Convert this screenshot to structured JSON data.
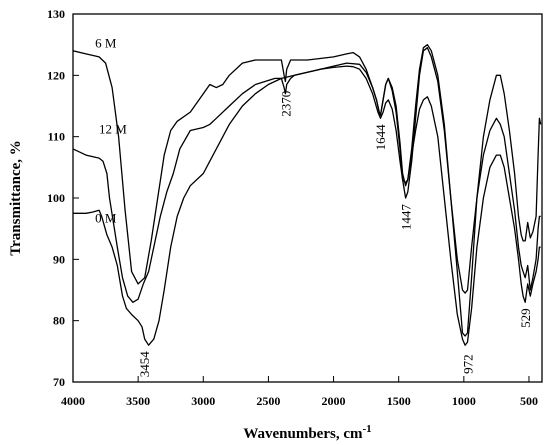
{
  "chart_data": {
    "type": "line",
    "xlabel": "Wavenumbers, cm",
    "xlabel_sup": "-1",
    "ylabel": "Transmittance, %",
    "xlim": [
      4000,
      400
    ],
    "ylim": [
      70,
      130
    ],
    "x_reversed": true,
    "x_ticks": [
      4000,
      3500,
      3000,
      2500,
      2000,
      1500,
      1000,
      500
    ],
    "y_ticks": [
      70,
      80,
      90,
      100,
      110,
      120,
      130
    ],
    "grid": false,
    "series": [
      {
        "name": "6 M",
        "color": "#000000",
        "points": [
          [
            4000,
            124
          ],
          [
            3900,
            123.5
          ],
          [
            3800,
            123
          ],
          [
            3750,
            122
          ],
          [
            3700,
            118
          ],
          [
            3650,
            110
          ],
          [
            3600,
            98
          ],
          [
            3550,
            88
          ],
          [
            3500,
            86
          ],
          [
            3450,
            87
          ],
          [
            3400,
            93
          ],
          [
            3350,
            100
          ],
          [
            3300,
            107
          ],
          [
            3250,
            111
          ],
          [
            3200,
            112.5
          ],
          [
            3100,
            114
          ],
          [
            3000,
            117
          ],
          [
            2950,
            118.5
          ],
          [
            2900,
            118
          ],
          [
            2850,
            118.5
          ],
          [
            2800,
            120
          ],
          [
            2700,
            122
          ],
          [
            2600,
            122.5
          ],
          [
            2450,
            122.5
          ],
          [
            2400,
            122.5
          ],
          [
            2380,
            120
          ],
          [
            2370,
            119
          ],
          [
            2360,
            121
          ],
          [
            2330,
            122.5
          ],
          [
            2300,
            122.5
          ],
          [
            2200,
            122.5
          ],
          [
            2000,
            123
          ],
          [
            1900,
            123.5
          ],
          [
            1850,
            123.7
          ],
          [
            1800,
            123
          ],
          [
            1750,
            121
          ],
          [
            1700,
            118
          ],
          [
            1670,
            116
          ],
          [
            1650,
            114
          ],
          [
            1640,
            113.5
          ],
          [
            1620,
            116
          ],
          [
            1600,
            118.5
          ],
          [
            1580,
            119.5
          ],
          [
            1550,
            118
          ],
          [
            1520,
            115
          ],
          [
            1490,
            109
          ],
          [
            1470,
            104
          ],
          [
            1447,
            102
          ],
          [
            1430,
            103
          ],
          [
            1400,
            108
          ],
          [
            1370,
            115
          ],
          [
            1340,
            121
          ],
          [
            1310,
            124.5
          ],
          [
            1280,
            125
          ],
          [
            1250,
            124
          ],
          [
            1200,
            120
          ],
          [
            1150,
            112
          ],
          [
            1100,
            100
          ],
          [
            1050,
            88
          ],
          [
            1010,
            78
          ],
          [
            990,
            77.5
          ],
          [
            972,
            78
          ],
          [
            940,
            87
          ],
          [
            900,
            100
          ],
          [
            850,
            110
          ],
          [
            800,
            116
          ],
          [
            750,
            120
          ],
          [
            720,
            120
          ],
          [
            690,
            117
          ],
          [
            650,
            111
          ],
          [
            610,
            104
          ],
          [
            580,
            97
          ],
          [
            560,
            94
          ],
          [
            545,
            93
          ],
          [
            529,
            93
          ],
          [
            510,
            96
          ],
          [
            490,
            93.5
          ],
          [
            470,
            94.5
          ],
          [
            445,
            97
          ],
          [
            430,
            107
          ],
          [
            420,
            113
          ],
          [
            410,
            112
          ]
        ]
      },
      {
        "name": "12 M",
        "color": "#000000",
        "points": [
          [
            4000,
            108
          ],
          [
            3900,
            107
          ],
          [
            3800,
            106.5
          ],
          [
            3770,
            106
          ],
          [
            3740,
            104
          ],
          [
            3720,
            100
          ],
          [
            3690,
            96
          ],
          [
            3660,
            92
          ],
          [
            3620,
            87
          ],
          [
            3580,
            84
          ],
          [
            3540,
            83
          ],
          [
            3500,
            83.5
          ],
          [
            3460,
            86
          ],
          [
            3420,
            88
          ],
          [
            3380,
            92
          ],
          [
            3330,
            97
          ],
          [
            3280,
            101
          ],
          [
            3230,
            104
          ],
          [
            3180,
            108
          ],
          [
            3100,
            111
          ],
          [
            3000,
            111.5
          ],
          [
            2950,
            112
          ],
          [
            2900,
            113
          ],
          [
            2800,
            115
          ],
          [
            2700,
            117
          ],
          [
            2600,
            118.5
          ],
          [
            2450,
            119.5
          ],
          [
            2400,
            119.5
          ],
          [
            2380,
            118
          ],
          [
            2370,
            117
          ],
          [
            2360,
            118.5
          ],
          [
            2330,
            119.5
          ],
          [
            2300,
            120
          ],
          [
            2200,
            120.5
          ],
          [
            2100,
            121
          ],
          [
            2000,
            121.5
          ],
          [
            1900,
            122
          ],
          [
            1800,
            121.8
          ],
          [
            1750,
            120.5
          ],
          [
            1700,
            118
          ],
          [
            1670,
            116
          ],
          [
            1650,
            114
          ],
          [
            1640,
            113.5
          ],
          [
            1620,
            116
          ],
          [
            1600,
            118.5
          ],
          [
            1580,
            119.5
          ],
          [
            1550,
            117.5
          ],
          [
            1520,
            114
          ],
          [
            1490,
            108
          ],
          [
            1470,
            103
          ],
          [
            1447,
            100
          ],
          [
            1430,
            101
          ],
          [
            1400,
            106
          ],
          [
            1370,
            113
          ],
          [
            1340,
            120
          ],
          [
            1310,
            124
          ],
          [
            1280,
            124.5
          ],
          [
            1250,
            123
          ],
          [
            1200,
            119
          ],
          [
            1150,
            111
          ],
          [
            1100,
            100
          ],
          [
            1050,
            90
          ],
          [
            1010,
            85
          ],
          [
            990,
            84.5
          ],
          [
            972,
            85
          ],
          [
            940,
            92
          ],
          [
            900,
            100
          ],
          [
            850,
            107
          ],
          [
            800,
            111
          ],
          [
            750,
            113
          ],
          [
            720,
            112
          ],
          [
            690,
            110
          ],
          [
            650,
            104
          ],
          [
            610,
            98
          ],
          [
            580,
            92
          ],
          [
            560,
            89
          ],
          [
            545,
            88
          ],
          [
            529,
            87
          ],
          [
            510,
            89
          ],
          [
            490,
            85
          ],
          [
            470,
            87
          ],
          [
            445,
            90
          ],
          [
            430,
            95
          ],
          [
            420,
            97
          ],
          [
            410,
            97
          ]
        ]
      },
      {
        "name": "0 M",
        "color": "#000000",
        "points": [
          [
            4000,
            97.5
          ],
          [
            3900,
            97.5
          ],
          [
            3850,
            97.7
          ],
          [
            3800,
            98
          ],
          [
            3780,
            97
          ],
          [
            3740,
            94
          ],
          [
            3700,
            92
          ],
          [
            3660,
            89
          ],
          [
            3620,
            84
          ],
          [
            3590,
            82
          ],
          [
            3550,
            81
          ],
          [
            3500,
            80
          ],
          [
            3470,
            79
          ],
          [
            3450,
            77
          ],
          [
            3420,
            76
          ],
          [
            3380,
            77
          ],
          [
            3340,
            80
          ],
          [
            3300,
            85
          ],
          [
            3250,
            92
          ],
          [
            3200,
            97
          ],
          [
            3150,
            100
          ],
          [
            3100,
            102
          ],
          [
            3000,
            104
          ],
          [
            2950,
            106
          ],
          [
            2900,
            108
          ],
          [
            2800,
            112
          ],
          [
            2700,
            115
          ],
          [
            2600,
            117
          ],
          [
            2500,
            118.5
          ],
          [
            2400,
            119.5
          ],
          [
            2300,
            120
          ],
          [
            2200,
            120.5
          ],
          [
            2100,
            121
          ],
          [
            2000,
            121.3
          ],
          [
            1900,
            121.5
          ],
          [
            1850,
            121.4
          ],
          [
            1800,
            121
          ],
          [
            1750,
            119.5
          ],
          [
            1700,
            117
          ],
          [
            1660,
            114
          ],
          [
            1640,
            113
          ],
          [
            1620,
            114
          ],
          [
            1600,
            115.5
          ],
          [
            1580,
            116
          ],
          [
            1550,
            114.5
          ],
          [
            1520,
            111
          ],
          [
            1490,
            106
          ],
          [
            1470,
            103
          ],
          [
            1447,
            102.5
          ],
          [
            1430,
            103
          ],
          [
            1400,
            107
          ],
          [
            1370,
            111
          ],
          [
            1340,
            114.5
          ],
          [
            1310,
            116
          ],
          [
            1280,
            116.5
          ],
          [
            1250,
            115
          ],
          [
            1200,
            110
          ],
          [
            1150,
            100
          ],
          [
            1100,
            90
          ],
          [
            1050,
            81
          ],
          [
            1010,
            77
          ],
          [
            990,
            76
          ],
          [
            972,
            76.5
          ],
          [
            940,
            82
          ],
          [
            900,
            92
          ],
          [
            850,
            100
          ],
          [
            800,
            105
          ],
          [
            750,
            107
          ],
          [
            720,
            107
          ],
          [
            690,
            105
          ],
          [
            650,
            100
          ],
          [
            610,
            95
          ],
          [
            580,
            90
          ],
          [
            560,
            86
          ],
          [
            545,
            84
          ],
          [
            529,
            83
          ],
          [
            510,
            86
          ],
          [
            490,
            84
          ],
          [
            470,
            86
          ],
          [
            445,
            88
          ],
          [
            430,
            90
          ],
          [
            420,
            92
          ],
          [
            410,
            92
          ]
        ]
      }
    ],
    "series_labels": [
      {
        "text": "6 M",
        "x": 3830,
        "y": 124.5
      },
      {
        "text": "12 M",
        "x": 3800,
        "y": 110.5
      },
      {
        "text": "0 M",
        "x": 3830,
        "y": 96
      }
    ],
    "peak_annotations": [
      {
        "text": "3454",
        "x": 3454,
        "y": 75
      },
      {
        "text": "2370",
        "x": 2370,
        "y": 117.5
      },
      {
        "text": "1644",
        "x": 1644,
        "y": 112
      },
      {
        "text": "1447",
        "x": 1447,
        "y": 99
      },
      {
        "text": "972",
        "x": 972,
        "y": 74.5
      },
      {
        "text": "529",
        "x": 529,
        "y": 82
      }
    ]
  }
}
